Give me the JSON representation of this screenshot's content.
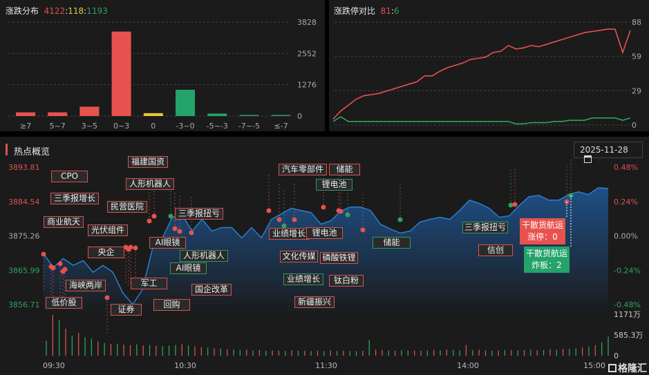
{
  "distribution": {
    "title": "涨跌分布",
    "up": "4122",
    "flat": "118",
    "down": "1193",
    "sep": ":",
    "yticks": [
      "3828",
      "2552",
      "1276",
      "0"
    ],
    "chart_data": {
      "type": "bar",
      "categories": [
        "≥7",
        "5~7",
        "3~5",
        "0~3",
        "0",
        "-3~0",
        "-5~-3",
        "-7~-5",
        "≤-7"
      ],
      "values": [
        150,
        150,
        380,
        3442,
        118,
        1070,
        100,
        13,
        10
      ],
      "colors": [
        "#e8524e",
        "#e8524e",
        "#e8524e",
        "#e8524e",
        "#e8c53a",
        "#24a36a",
        "#24a36a",
        "#24a36a",
        "#24a36a"
      ],
      "ylim": [
        0,
        3828
      ],
      "grid": true
    }
  },
  "limit": {
    "title": "涨跌停对比",
    "up": "81",
    "down": "6",
    "sep": ":",
    "yticks": [
      "88",
      "59",
      "29",
      "0"
    ],
    "chart_data": {
      "type": "line",
      "ylim": [
        0,
        88
      ],
      "series": [
        {
          "color": "#e8524e",
          "values": [
            5,
            12,
            17,
            22,
            25,
            26,
            27,
            29,
            31,
            33,
            35,
            37,
            42,
            42,
            46,
            49,
            51,
            53,
            56,
            57,
            58,
            62,
            63,
            68,
            65,
            66,
            68,
            67,
            69,
            71,
            73,
            75,
            77,
            79,
            80,
            81,
            82,
            82,
            62,
            81
          ]
        },
        {
          "color": "#2fa35e",
          "values": [
            3,
            7,
            3,
            3,
            3,
            3,
            3,
            3,
            3,
            3,
            3,
            3,
            3,
            3,
            3,
            3,
            3,
            3,
            3,
            3,
            3,
            3,
            3,
            3,
            1,
            1,
            2,
            2,
            2,
            3,
            3,
            4,
            4,
            4,
            6,
            6,
            6,
            6,
            4,
            6
          ]
        }
      ]
    }
  },
  "overview": {
    "title": "热点概览",
    "date": "2025-11-28",
    "calendar_icon": "calendar-icon",
    "yticks_left": [
      "3893.81",
      "3884.54",
      "3875.26",
      "3865.99",
      "3856.71"
    ],
    "yticks_right": [
      "0.48%",
      "0.24%",
      "0.00%",
      "-0.24%",
      "-0.48%"
    ],
    "vol_ticks": [
      "1171万",
      "585.3万",
      "0"
    ],
    "xticks": [
      "09:30",
      "10:30",
      "11:30",
      "14:00",
      "15:00"
    ],
    "tags": [
      {
        "t": "CPO",
        "c": "r"
      },
      {
        "t": "三季报增长",
        "c": "r"
      },
      {
        "t": "商业航天",
        "c": "r"
      },
      {
        "t": "光伏组件",
        "c": "r"
      },
      {
        "t": "央企",
        "c": "r"
      },
      {
        "t": "福建国资",
        "c": "r"
      },
      {
        "t": "人形机器人",
        "c": "r"
      },
      {
        "t": "民营医院",
        "c": "r"
      },
      {
        "t": "三季报扭亏",
        "c": "r"
      },
      {
        "t": "AI眼镜",
        "c": "r"
      },
      {
        "t": "人形机器人",
        "c": "g"
      },
      {
        "t": "AI眼镜",
        "c": "g"
      },
      {
        "t": "证券",
        "c": "r"
      },
      {
        "t": "军工",
        "c": "r"
      },
      {
        "t": "回购",
        "c": "r"
      },
      {
        "t": "国企改革",
        "c": "r"
      },
      {
        "t": "低价股",
        "c": "r"
      },
      {
        "t": "海峡两岸",
        "c": "r"
      },
      {
        "t": "储能",
        "c": "r"
      },
      {
        "t": "汽车零部件",
        "c": "r"
      },
      {
        "t": "锂电池",
        "c": "g"
      },
      {
        "t": "业绩增长",
        "c": "r"
      },
      {
        "t": "锂电池",
        "c": "r"
      },
      {
        "t": "文化传媒",
        "c": "r"
      },
      {
        "t": "磷酸铁锂",
        "c": "r"
      },
      {
        "t": "业绩增长",
        "c": "g"
      },
      {
        "t": "钛白粉",
        "c": "r"
      },
      {
        "t": "新疆振兴",
        "c": "r"
      },
      {
        "t": "储能",
        "c": "g"
      },
      {
        "t": "三季报扭亏",
        "c": "g"
      },
      {
        "t": "信创",
        "c": "r"
      }
    ],
    "highlight_up": {
      "name": "干散货航运",
      "line": "涨停：0",
      "color": "#e8524e"
    },
    "highlight_down": {
      "name": "干散货航运",
      "line": "炸板：2",
      "color": "#24a36a"
    },
    "chart_data": {
      "type": "area",
      "ylim": [
        3856.71,
        3893.81
      ],
      "base": 3875.26,
      "index": [
        3870.44,
        3866.73,
        3869.14,
        3867.28,
        3868.58,
        3865.43,
        3867.28,
        3865.43,
        3859.86,
        3856.71,
        3860.79,
        3871.92,
        3874.7,
        3880.27,
        3880.83,
        3876.56,
        3879.71,
        3876.56,
        3877.49,
        3877.49,
        3874.7,
        3877.49,
        3874.7,
        3879.71,
        3881.2,
        3882.68,
        3882.12,
        3881.57,
        3878.41,
        3879.34,
        3881.94,
        3883.05,
        3883.05,
        3882.12,
        3878.41,
        3877.12,
        3876.0,
        3876.56,
        3878.97,
        3879.71,
        3880.27,
        3879.71,
        3882.12,
        3884.91,
        3883.98,
        3882.68,
        3880.27,
        3880.64,
        3883.42,
        3885.83,
        3886.2,
        3884.91,
        3884.91,
        3886.39,
        3887.13,
        3886.39,
        3888.24,
        3888.06
      ],
      "volume": [
        420,
        1150,
        1000,
        760,
        560,
        640,
        520,
        480,
        400,
        360,
        330,
        340,
        310,
        300,
        320,
        290,
        300,
        280,
        270,
        280,
        300,
        320,
        290,
        260,
        240,
        230,
        210,
        200,
        180,
        170,
        160,
        170,
        150,
        160,
        140,
        150,
        140,
        130,
        150,
        140,
        140,
        130,
        140,
        130,
        150,
        130,
        140,
        130,
        130,
        140,
        450,
        170,
        160,
        150,
        140,
        160,
        150,
        140,
        140,
        150,
        160,
        150,
        170,
        160,
        150,
        300,
        160,
        170,
        150,
        140,
        150,
        160,
        160,
        150,
        160,
        170,
        150,
        160,
        180,
        170,
        190,
        200,
        210,
        230,
        260,
        300,
        380,
        540
      ],
      "volume_colors": "grgrgrggrgrgrrgrgrgggrgrrgrgrggrgrgrrgrgrgrgrgrggrgrrgrggrrgrgrggrgrrgrgrgrgrgrgrggrgrgg"
    }
  },
  "brand": {
    "name": "格隆汇"
  }
}
